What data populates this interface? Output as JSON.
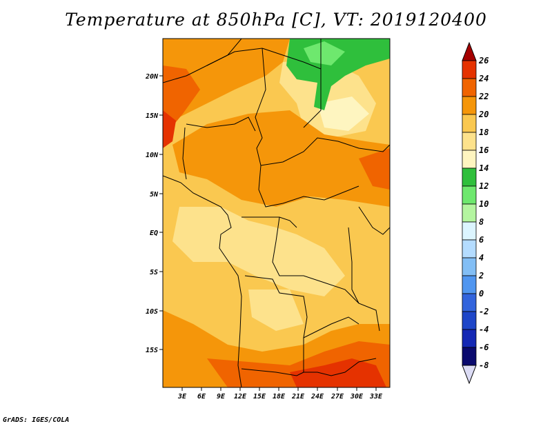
{
  "title": "Temperature at 850hPa [C], VT: 2019120400",
  "credit": "GrADS: IGES/COLA",
  "map": {
    "lat_labels": [
      "20N",
      "15N",
      "10N",
      "5N",
      "EQ",
      "5S",
      "10S",
      "15S"
    ],
    "lon_labels": [
      "3E",
      "6E",
      "9E",
      "12E",
      "15E",
      "18E",
      "21E",
      "24E",
      "27E",
      "30E",
      "33E"
    ]
  },
  "colorbar": {
    "levels": [
      "26",
      "24",
      "22",
      "20",
      "18",
      "16",
      "14",
      "12",
      "10",
      "8",
      "6",
      "4",
      "2",
      "0",
      "-2",
      "-4",
      "-6",
      "-8"
    ],
    "colors": [
      "#a50000",
      "#e53200",
      "#f06400",
      "#f5960a",
      "#fac850",
      "#fde28c",
      "#fef5c0",
      "#2fbf3c",
      "#6ee86e",
      "#b4f5a0",
      "#dcf5ff",
      "#b4dcff",
      "#82bef5",
      "#5096f0",
      "#3264dc",
      "#1e46c8",
      "#1428b4",
      "#0a0a6e",
      "#dcdcf5"
    ],
    "top_triangle_color": "#a50000",
    "bottom_triangle_color": "#dcdcf5"
  }
}
